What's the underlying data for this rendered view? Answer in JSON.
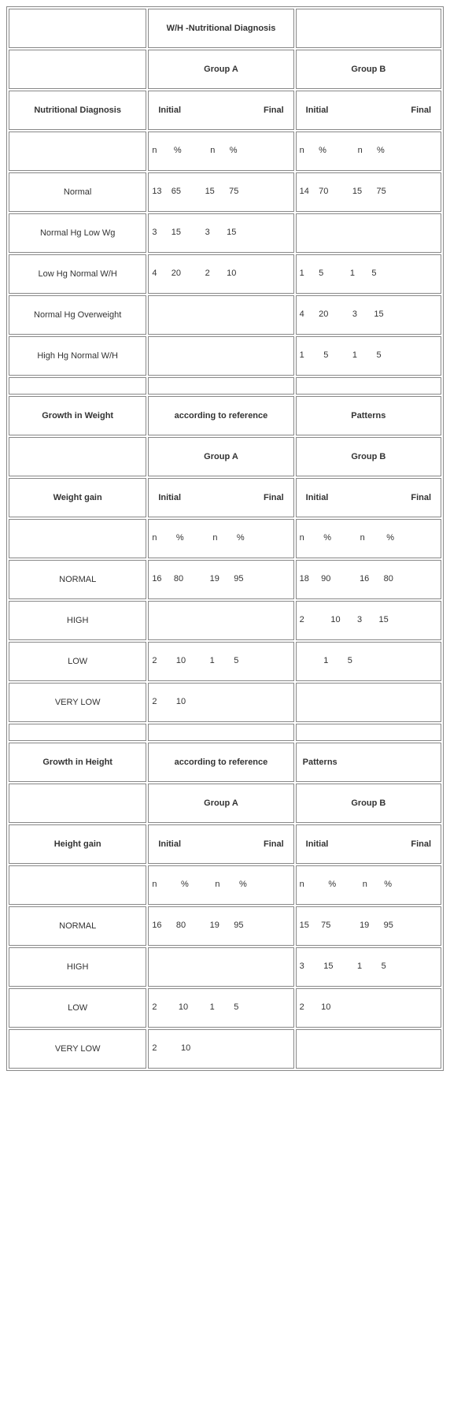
{
  "section1": {
    "title": "W/H -Nutritional Diagnosis",
    "groupA": "Group A",
    "groupB": "Group B",
    "rowhead": "Nutritional Diagnosis",
    "initial": "Initial",
    "final": "Final",
    "subA": "n       %            n      %",
    "subB": "n      %             n      %",
    "rows": [
      {
        "label": "Normal",
        "a": "13    65          15      75",
        "b": "14    70          15      75"
      },
      {
        "label": "Normal Hg Low Wg",
        "a": "3      15          3       15",
        "b": ""
      },
      {
        "label": "Low Hg Normal W/H",
        "a": "4      20          2       10",
        "b": "1      5           1       5"
      },
      {
        "label": "Normal Hg Overweight",
        "a": "",
        "b": "4      20          3       15"
      },
      {
        "label": "High Hg Normal W/H",
        "a": "",
        "b": "1        5          1        5"
      }
    ]
  },
  "section2": {
    "title": "Growth in Weight",
    "ref": "according to reference",
    "pat": "Patterns",
    "groupA": "Group A",
    "groupB": "Group B",
    "rowhead": "Weight gain",
    "initial": "Initial",
    "final": "Final",
    "subA": "n        %            n        %",
    "subB": "n        %            n         %",
    "rows": [
      {
        "label": "NORMAL",
        "a": "16     80           19      95",
        "b": "18     90            16      80"
      },
      {
        "label": "HIGH",
        "a": "",
        "b": "2           10       3       15"
      },
      {
        "label": "LOW",
        "a": "2        10          1        5",
        "b": "          1        5"
      },
      {
        "label": "VERY LOW",
        "a": "2        10",
        "b": ""
      }
    ]
  },
  "section3": {
    "title": "Growth in Height",
    "ref": "according to reference",
    "pat": "Patterns",
    "groupA": "Group A",
    "groupB": "Group B",
    "rowhead": "Height gain",
    "initial": "Initial",
    "final": "Final",
    "subA": "n          %           n        %",
    "subB": "n          %           n       %",
    "subB2": "n       %",
    "rows": [
      {
        "label": "NORMAL",
        "a": "16      80          19      95",
        "b": "15     75            19      95"
      },
      {
        "label": "HIGH",
        "a": "",
        "b": "3        15          1        5"
      },
      {
        "label": "LOW",
        "a": "2         10         1        5",
        "b": "2       10"
      },
      {
        "label": "VERY LOW",
        "a": "2          10",
        "b": ""
      }
    ]
  }
}
